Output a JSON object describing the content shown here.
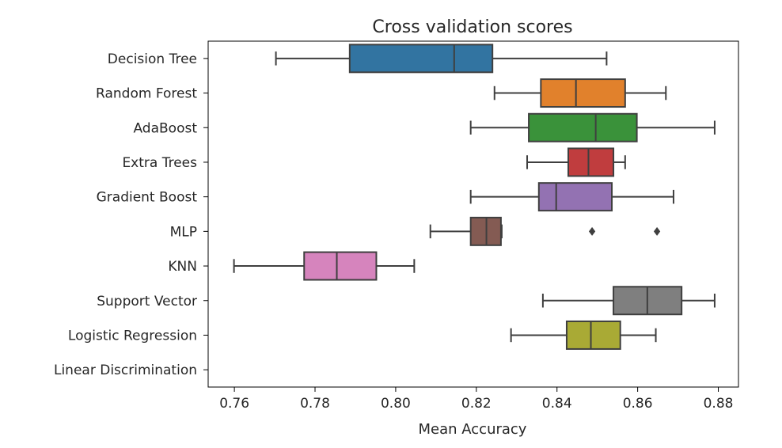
{
  "chart_data": {
    "type": "boxplot",
    "title": "Cross validation scores",
    "xlabel": "Mean Accuracy",
    "ylabel": "",
    "xlim": [
      0.7535,
      0.885
    ],
    "xticks": [
      0.76,
      0.78,
      0.8,
      0.82,
      0.84,
      0.86,
      0.88
    ],
    "xtick_labels": [
      "0.76",
      "0.78",
      "0.80",
      "0.82",
      "0.84",
      "0.86",
      "0.88"
    ],
    "grid": false,
    "series": [
      {
        "name": "Decision Tree",
        "color": "#3274a1",
        "whisker_low": 0.7703,
        "q1": 0.7886,
        "median": 0.8145,
        "q3": 0.824,
        "whisker_high": 0.8523,
        "outliers": []
      },
      {
        "name": "Random Forest",
        "color": "#e1812c",
        "whisker_low": 0.8245,
        "q1": 0.836,
        "median": 0.8447,
        "q3": 0.8569,
        "whisker_high": 0.867,
        "outliers": []
      },
      {
        "name": "AdaBoost",
        "color": "#3a923a",
        "whisker_low": 0.8186,
        "q1": 0.833,
        "median": 0.8496,
        "q3": 0.8598,
        "whisker_high": 0.8791,
        "outliers": []
      },
      {
        "name": "Extra Trees",
        "color": "#c03d3e",
        "whisker_low": 0.8326,
        "q1": 0.8428,
        "median": 0.8478,
        "q3": 0.854,
        "whisker_high": 0.8569,
        "outliers": []
      },
      {
        "name": "Gradient Boost",
        "color": "#9372b2",
        "whisker_low": 0.8186,
        "q1": 0.8355,
        "median": 0.8398,
        "q3": 0.8536,
        "whisker_high": 0.8689,
        "outliers": []
      },
      {
        "name": "MLP",
        "color": "#845b53",
        "whisker_low": 0.8086,
        "q1": 0.8186,
        "median": 0.8225,
        "q3": 0.8261,
        "whisker_high": 0.8263,
        "outliers": [
          0.8487,
          0.8648
        ]
      },
      {
        "name": "KNN",
        "color": "#d684bd",
        "whisker_low": 0.7599,
        "q1": 0.7773,
        "median": 0.7854,
        "q3": 0.7952,
        "whisker_high": 0.8046,
        "outliers": []
      },
      {
        "name": "Support Vector",
        "color": "#7f7f7f",
        "whisker_low": 0.8365,
        "q1": 0.854,
        "median": 0.8624,
        "q3": 0.8709,
        "whisker_high": 0.8791,
        "outliers": []
      },
      {
        "name": "Logistic Regression",
        "color": "#a9aa35",
        "whisker_low": 0.8286,
        "q1": 0.8424,
        "median": 0.8484,
        "q3": 0.8557,
        "whisker_high": 0.8645,
        "outliers": []
      },
      {
        "name": "Linear Discrimination",
        "color": "#2d8ca3",
        "whisker_low": null,
        "q1": null,
        "median": null,
        "q3": null,
        "whisker_high": null,
        "outliers": []
      }
    ]
  }
}
